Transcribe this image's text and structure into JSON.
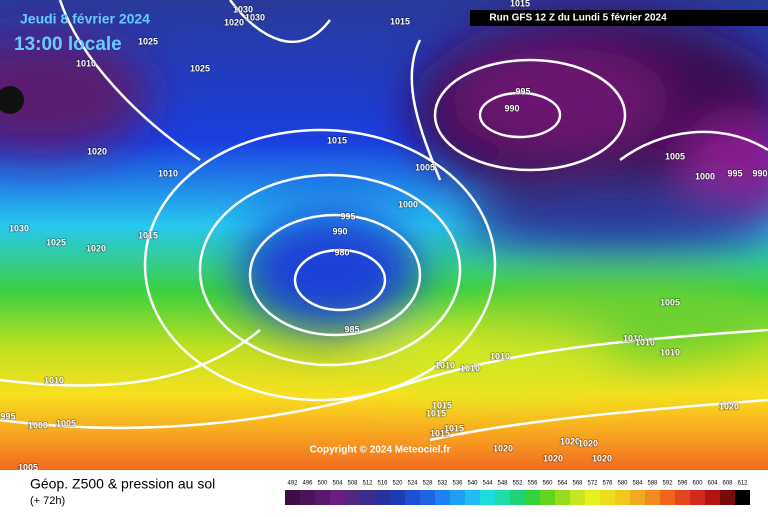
{
  "header": {
    "date": "Jeudi 8 février 2024",
    "time": "13:00 locale",
    "run": "Run GFS 12 Z du Lundi 5 février 2024",
    "copyright": "Copyright © 2024 Meteociel.fr"
  },
  "footer": {
    "title": "Géop. Z500 & pression au sol",
    "lead": "(+ 72h)"
  },
  "isobars": [
    "1015",
    "1030",
    "1030",
    "1025",
    "1020",
    "1010",
    "1025",
    "1015",
    "995",
    "990",
    "1015",
    "1020",
    "1010",
    "1005",
    "1005",
    "1000",
    "995",
    "990",
    "1000",
    "995",
    "990",
    "980",
    "1030",
    "1025",
    "1020",
    "1015",
    "985",
    "1005",
    "1010",
    "1010",
    "1010",
    "1010",
    "1010",
    "1010",
    "1010",
    "995",
    "1000",
    "1005",
    "1015",
    "1015",
    "1015",
    "1015",
    "1020",
    "1020",
    "1020",
    "1020",
    "1020",
    "1020",
    "1005"
  ],
  "legend": {
    "labels": [
      "492",
      "496",
      "500",
      "504",
      "508",
      "512",
      "516",
      "520",
      "524",
      "528",
      "532",
      "536",
      "540",
      "544",
      "548",
      "552",
      "556",
      "560",
      "564",
      "568",
      "572",
      "576",
      "580",
      "584",
      "588",
      "592",
      "596",
      "600",
      "604",
      "608",
      "612"
    ],
    "colors": [
      "#3c0f46",
      "#4b145a",
      "#5a196e",
      "#6e1e82",
      "#50287d",
      "#3c2d8c",
      "#28329b",
      "#1e3cb4",
      "#1e50d2",
      "#1e64e6",
      "#1e82f0",
      "#1ea0f0",
      "#1ebef0",
      "#1edcdc",
      "#1edcaa",
      "#1ed278",
      "#32d23c",
      "#64d21e",
      "#96dc1e",
      "#c8e61e",
      "#e6f01e",
      "#f0dc1e",
      "#f0c81e",
      "#f0aa1e",
      "#f08c1e",
      "#f0641e",
      "#e6461e",
      "#d2281e",
      "#b41414",
      "#780a0a",
      "#000000"
    ]
  }
}
